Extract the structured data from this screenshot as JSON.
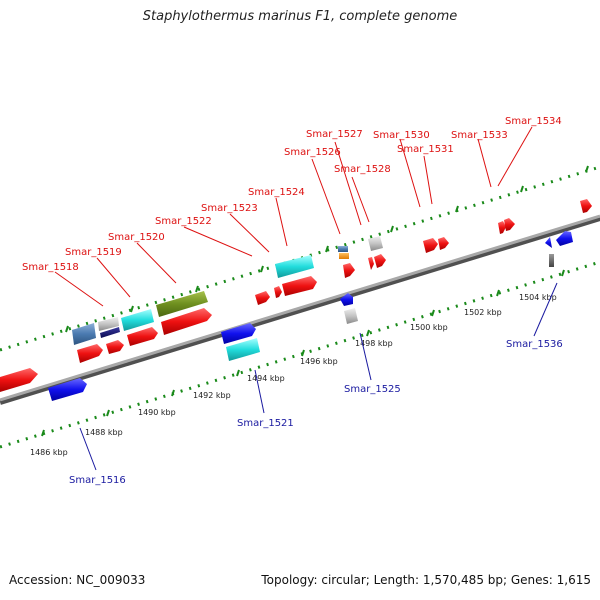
{
  "title": "Staphylothermus marinus F1, complete genome",
  "footer": {
    "accession": "Accession: NC_009033",
    "summary": "Topology: circular; Length: 1,570,485 bp; Genes: 1,615"
  },
  "colors": {
    "forward_label": "#dd1111",
    "reverse_label": "#1a1aa0",
    "backbone": "#8a8a8a",
    "dots": "#1a8a1a"
  },
  "ticks": [
    "1486 kbp",
    "1488 kbp",
    "1490 kbp",
    "1492 kbp",
    "1494 kbp",
    "1496 kbp",
    "1498 kbp",
    "1500 kbp",
    "1502 kbp",
    "1504 kbp"
  ],
  "forward_labels": [
    "Smar_1518",
    "Smar_1519",
    "Smar_1520",
    "Smar_1522",
    "Smar_1523",
    "Smar_1524",
    "Smar_1526",
    "Smar_1527",
    "Smar_1528",
    "Smar_1530",
    "Smar_1531",
    "Smar_1533",
    "Smar_1534"
  ],
  "reverse_labels": [
    "Smar_1516",
    "Smar_1521",
    "Smar_1525",
    "Smar_1536"
  ]
}
